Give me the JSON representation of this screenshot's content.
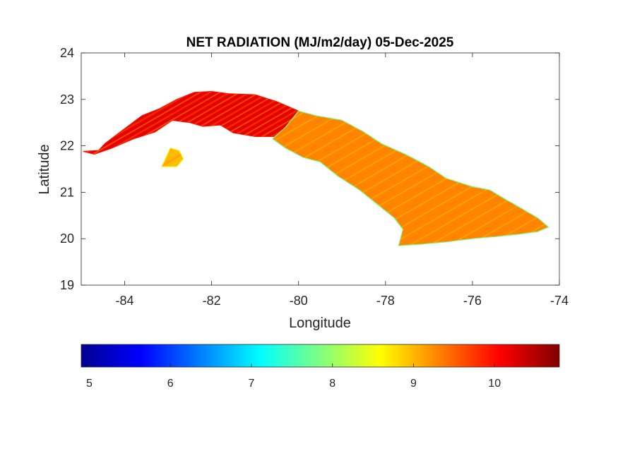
{
  "chart_data": {
    "type": "heatmap",
    "title": "NET RADIATION (MJ/m2/day) 05-Dec-2025",
    "xlabel": "Longitude",
    "ylabel": "Latitude",
    "xlim": [
      -85,
      -74
    ],
    "ylim": [
      19,
      24
    ],
    "x_ticks": [
      -84,
      -82,
      -80,
      -78,
      -76,
      -74
    ],
    "y_ticks": [
      19,
      20,
      21,
      22,
      23,
      24
    ],
    "x_tick_labels": [
      "-84",
      "-82",
      "-80",
      "-78",
      "-76",
      "-74"
    ],
    "y_tick_labels": [
      "19",
      "20",
      "21",
      "22",
      "23",
      "24"
    ],
    "grid": false,
    "colorbar": {
      "orientation": "horizontal",
      "placement": "bottom",
      "colormap": "jet",
      "range": [
        4.9,
        10.8
      ],
      "ticks": [
        5,
        6,
        7,
        8,
        9,
        10
      ],
      "tick_labels": [
        "5",
        "6",
        "7",
        "8",
        "9",
        "10"
      ]
    },
    "regions": [
      {
        "name": "",
        "value_range": [
          9.5,
          10.7
        ],
        "typical": 10.2,
        "outline": [
          [
            -84.95,
            21.88
          ],
          [
            -84.6,
            21.9
          ],
          [
            -84.45,
            22.05
          ],
          [
            -84.1,
            22.3
          ],
          [
            -83.6,
            22.65
          ],
          [
            -83.2,
            22.8
          ],
          [
            -82.8,
            23.0
          ],
          [
            -82.4,
            23.15
          ],
          [
            -82.0,
            23.17
          ],
          [
            -81.6,
            23.12
          ],
          [
            -81.0,
            23.1
          ],
          [
            -80.5,
            22.95
          ],
          [
            -80.0,
            22.75
          ],
          [
            -79.7,
            22.55
          ],
          [
            -80.0,
            22.35
          ],
          [
            -80.5,
            22.2
          ],
          [
            -81.0,
            22.2
          ],
          [
            -81.5,
            22.28
          ],
          [
            -81.8,
            22.45
          ],
          [
            -82.2,
            22.42
          ],
          [
            -82.5,
            22.5
          ],
          [
            -82.9,
            22.55
          ],
          [
            -83.3,
            22.3
          ],
          [
            -83.8,
            22.15
          ],
          [
            -84.3,
            21.95
          ],
          [
            -84.7,
            21.82
          ]
        ]
      },
      {
        "name": "",
        "value_range": [
          7.3,
          10.6
        ],
        "typical": 9.3,
        "outline": [
          [
            -80.0,
            22.75
          ],
          [
            -79.6,
            22.65
          ],
          [
            -79.0,
            22.55
          ],
          [
            -78.5,
            22.3
          ],
          [
            -78.1,
            22.05
          ],
          [
            -77.5,
            21.8
          ],
          [
            -77.0,
            21.55
          ],
          [
            -76.6,
            21.3
          ],
          [
            -76.0,
            21.12
          ],
          [
            -75.6,
            21.05
          ],
          [
            -75.3,
            20.88
          ],
          [
            -75.0,
            20.72
          ],
          [
            -74.5,
            20.45
          ],
          [
            -74.25,
            20.25
          ],
          [
            -74.5,
            20.15
          ],
          [
            -74.9,
            20.1
          ],
          [
            -75.4,
            20.05
          ],
          [
            -76.0,
            20.0
          ],
          [
            -76.6,
            19.93
          ],
          [
            -77.2,
            19.88
          ],
          [
            -77.7,
            19.85
          ],
          [
            -77.6,
            20.2
          ],
          [
            -77.8,
            20.45
          ],
          [
            -78.2,
            20.75
          ],
          [
            -78.6,
            21.05
          ],
          [
            -79.1,
            21.35
          ],
          [
            -79.5,
            21.65
          ],
          [
            -79.9,
            21.75
          ],
          [
            -80.3,
            21.95
          ],
          [
            -80.6,
            22.15
          ],
          [
            -80.3,
            22.4
          ]
        ]
      },
      {
        "name": "",
        "value_range": [
          8.0,
          10.0
        ],
        "typical": 9.0,
        "outline": [
          [
            -83.15,
            21.55
          ],
          [
            -82.95,
            21.95
          ],
          [
            -82.75,
            21.9
          ],
          [
            -82.65,
            21.72
          ],
          [
            -82.8,
            21.55
          ]
        ]
      }
    ]
  }
}
